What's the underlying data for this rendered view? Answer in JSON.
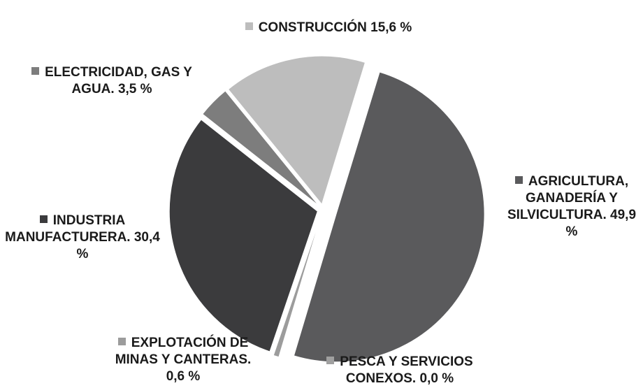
{
  "chart_data": {
    "type": "pie",
    "categories": [
      "AGRICULTURA, GANADERÍA Y SILVICULTURA.",
      "PESCA Y SERVICIOS CONEXOS.",
      "EXPLOTACIÓN DE MINAS Y CANTERAS.",
      "INDUSTRIA MANUFACTURERA.",
      "ELECTRICIDAD, GAS Y AGUA.",
      "CONSTRUCCIÓN"
    ],
    "values": [
      49.9,
      0.0,
      0.6,
      30.4,
      3.5,
      15.6
    ],
    "value_labels": [
      "49,9 %",
      "0,0 %",
      "0,6 %",
      "30,4 %",
      "3,5 %",
      "15,6 %"
    ],
    "colors": [
      "#5a5a5c",
      "#a0a0a0",
      "#9c9c9c",
      "#3b3b3d",
      "#7d7d7d",
      "#bdbdbd"
    ]
  }
}
